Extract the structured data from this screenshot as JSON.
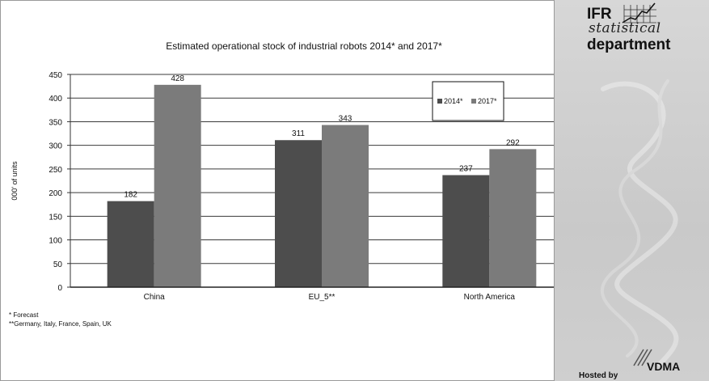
{
  "chart_data": {
    "type": "bar",
    "title": "Estimated operational stock of industrial robots 2014* and 2017*",
    "ylabel": "000' of units",
    "xlabel": "",
    "ylim": [
      0,
      450
    ],
    "yticks": [
      0,
      50,
      100,
      150,
      200,
      250,
      300,
      350,
      400,
      450
    ],
    "grid": true,
    "legend_position": "top-right",
    "categories": [
      "China",
      "EU_5**",
      "North America"
    ],
    "series": [
      {
        "name": "2014*",
        "values": [
          182,
          311,
          237
        ],
        "color": "#4d4d4d"
      },
      {
        "name": "2017*",
        "values": [
          428,
          343,
          292
        ],
        "color": "#7b7b7b"
      }
    ]
  },
  "footnotes": {
    "forecast": "*  Forecast",
    "countries": "**Germany, Italy, France, Spain, UK"
  },
  "branding": {
    "ifr": "IFR",
    "statistical": "statistical",
    "department": "department",
    "hosted_by": "Hosted by",
    "vdma": "VDMA"
  }
}
